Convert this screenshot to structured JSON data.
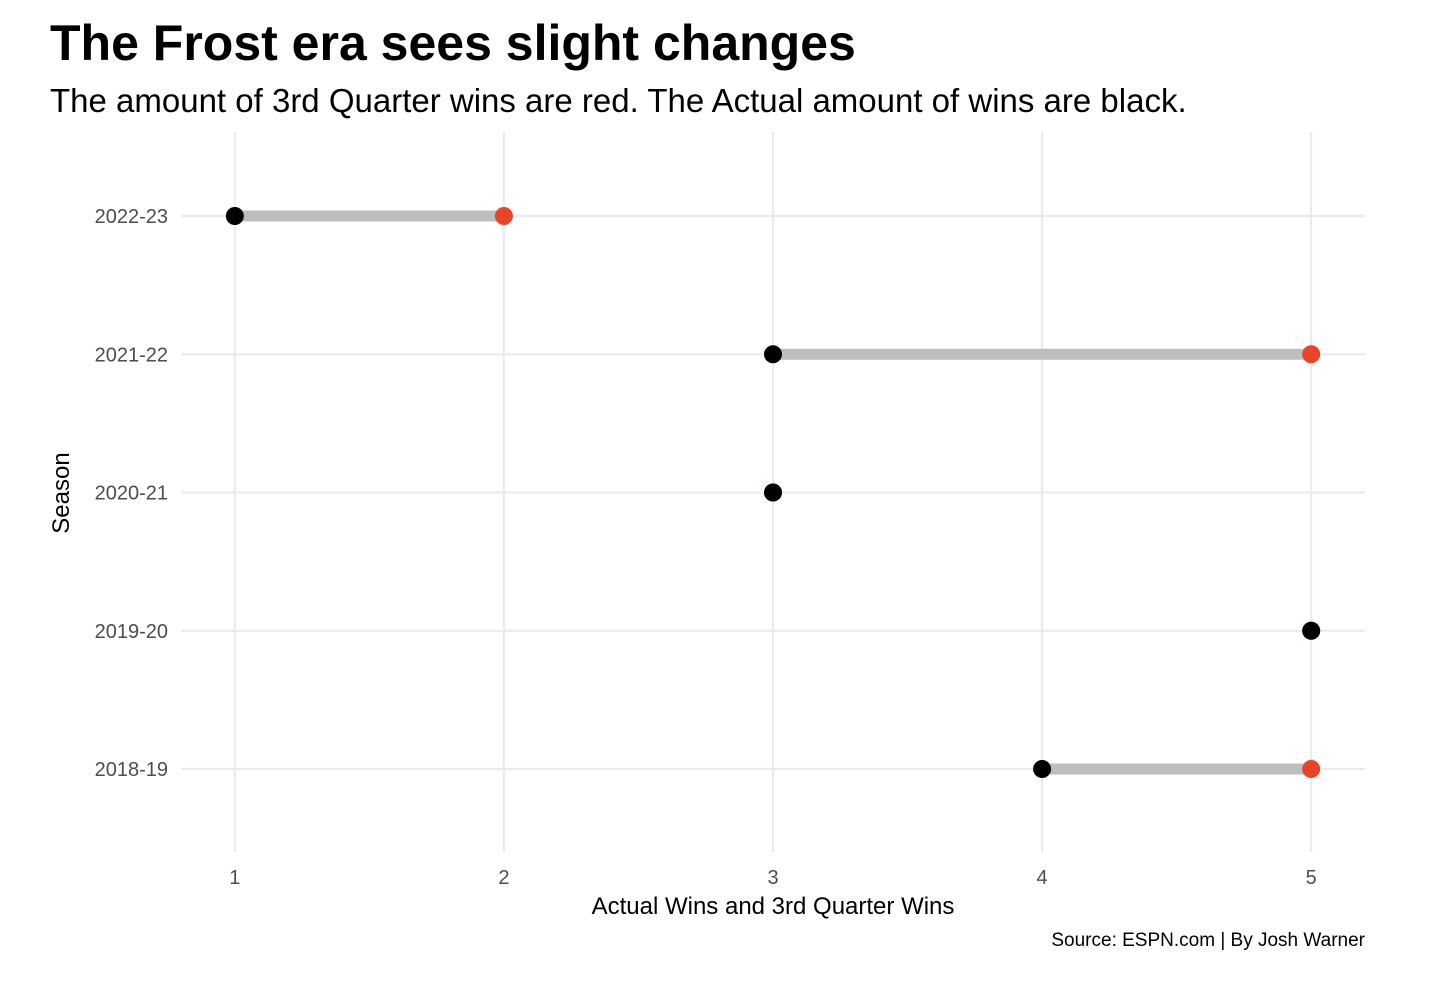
{
  "chart_data": {
    "type": "dumbbell",
    "title": "The Frost era sees slight changes",
    "subtitle": "The amount of 3rd Quarter wins are red. The Actual amount of wins are black.",
    "caption": "Source: ESPN.com | By Josh Warner",
    "xlabel": "Actual Wins and 3rd Quarter Wins",
    "ylabel": "Season",
    "xlim": [
      0.8,
      5.2
    ],
    "x_ticks": [
      1,
      2,
      3,
      4,
      5
    ],
    "categories": [
      "2018-19",
      "2019-20",
      "2020-21",
      "2021-22",
      "2022-23"
    ],
    "series": [
      {
        "name": "Actual Wins",
        "color": "#000000",
        "values": [
          4,
          5,
          3,
          3,
          1
        ]
      },
      {
        "name": "3rd Quarter Wins",
        "color": "#e8442a",
        "values": [
          5,
          5,
          3,
          5,
          2
        ]
      }
    ],
    "segment_color": "#bebebe",
    "grid_color": "#ebebeb"
  }
}
